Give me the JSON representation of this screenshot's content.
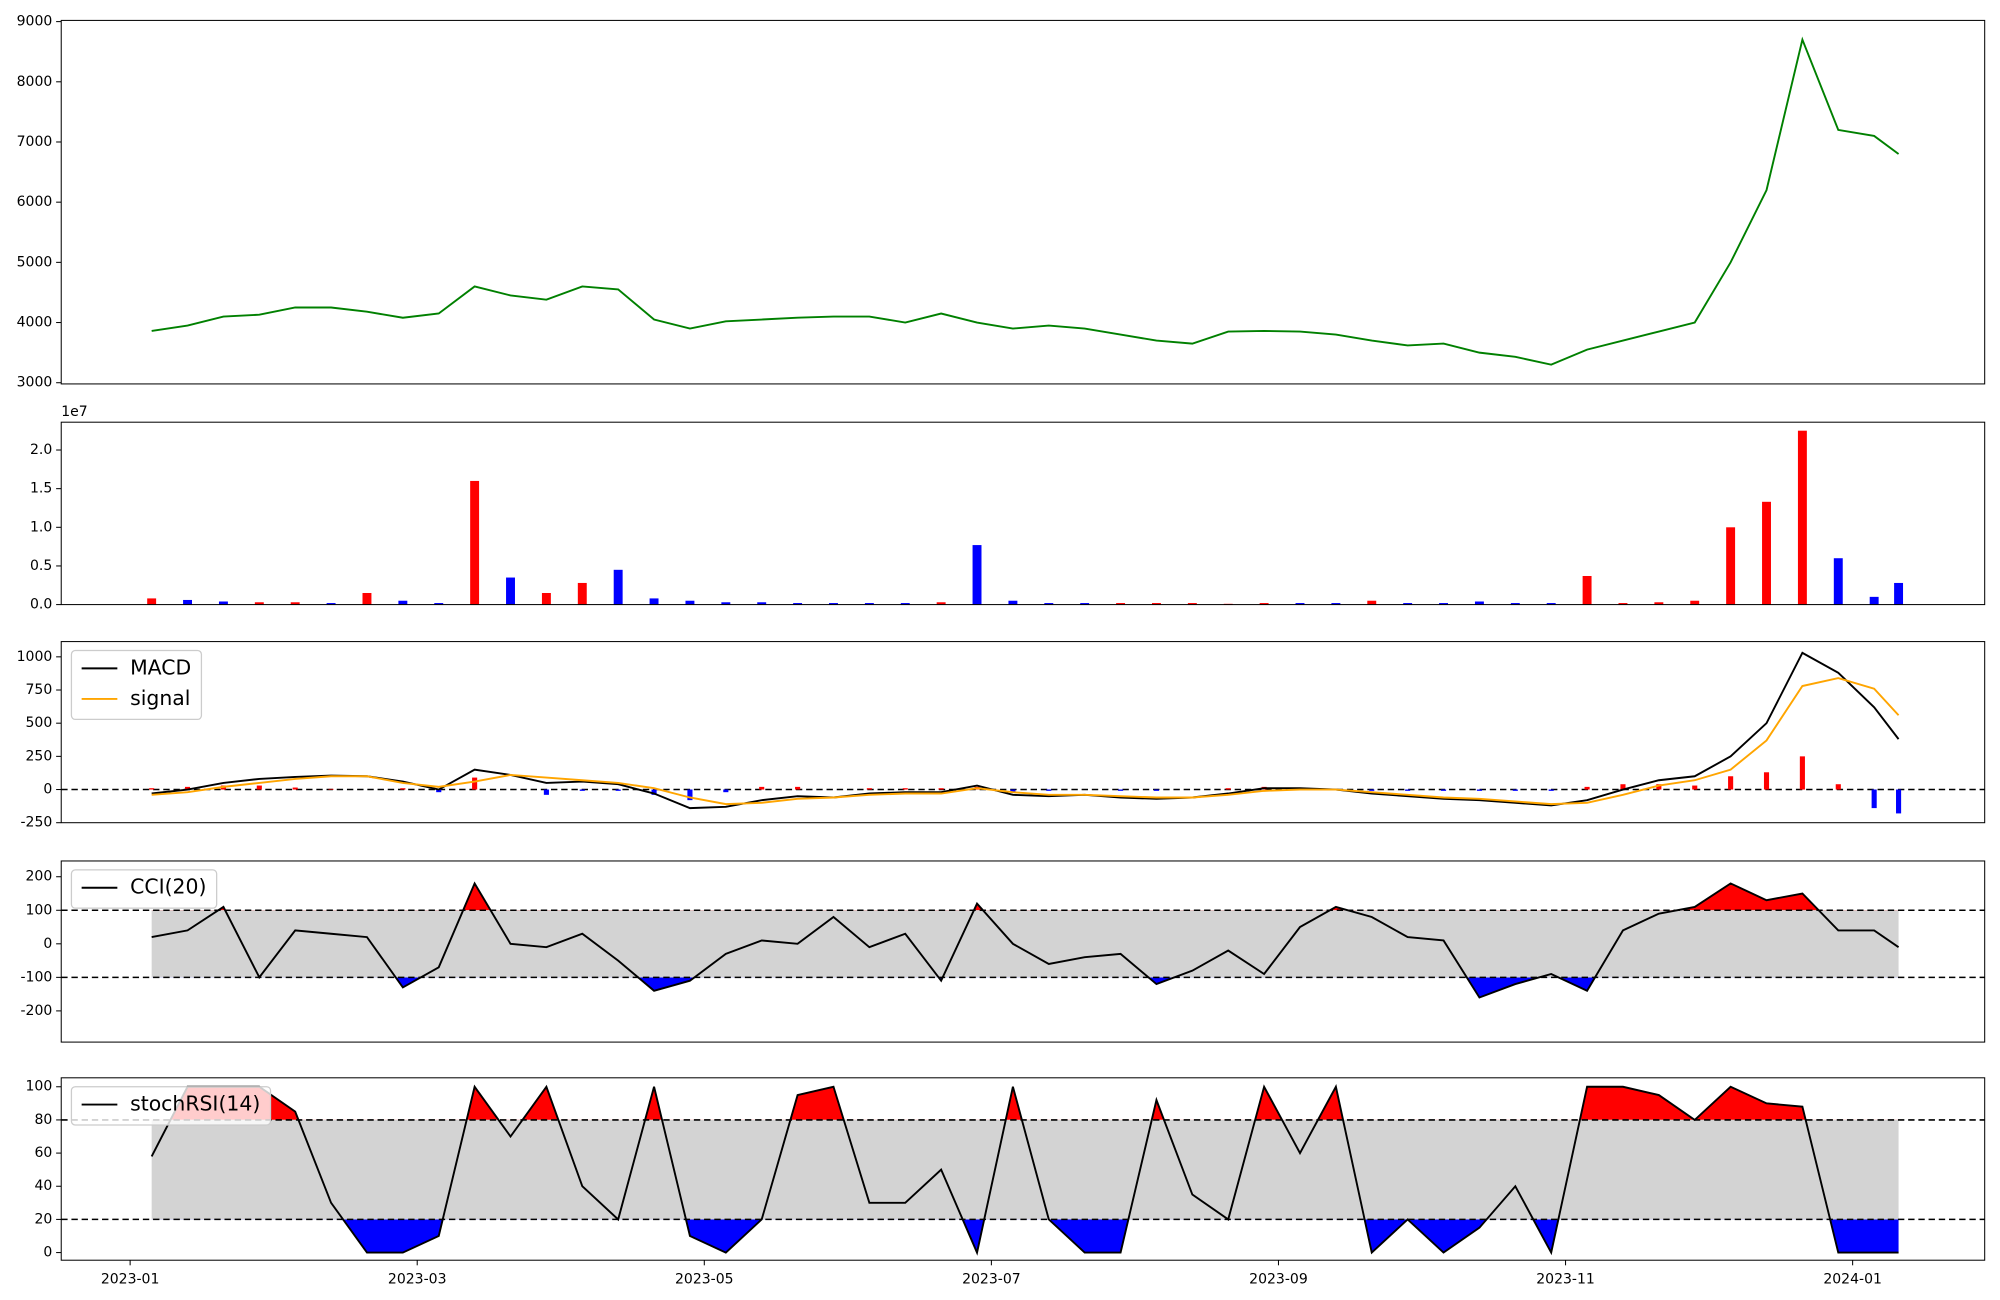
{
  "chart_data": [
    {
      "type": "line",
      "xlim": [
        -0.48,
        12.92
      ],
      "ylim": [
        2980,
        9020
      ],
      "yticks": [
        3000,
        4000,
        5000,
        6000,
        7000,
        8000,
        9000
      ],
      "x": [
        0.15,
        0.4,
        0.65,
        0.9,
        1.15,
        1.4,
        1.65,
        1.9,
        2.15,
        2.4,
        2.65,
        2.9,
        3.15,
        3.4,
        3.65,
        3.9,
        4.15,
        4.4,
        4.65,
        4.9,
        5.15,
        5.4,
        5.65,
        5.9,
        6.15,
        6.4,
        6.65,
        6.9,
        7.15,
        7.4,
        7.65,
        7.9,
        8.15,
        8.4,
        8.65,
        8.9,
        9.15,
        9.4,
        9.65,
        9.9,
        10.15,
        10.4,
        10.65,
        10.9,
        11.15,
        11.4,
        11.65,
        11.9,
        12.15,
        12.32
      ],
      "series": [
        {
          "color": "green",
          "values": [
            3860,
            3950,
            4100,
            4130,
            4250,
            4250,
            4180,
            4080,
            4150,
            4600,
            4450,
            4380,
            4600,
            4550,
            4050,
            3900,
            4020,
            4050,
            4080,
            4100,
            4100,
            4000,
            4150,
            4000,
            3900,
            3950,
            3900,
            3800,
            3700,
            3650,
            3850,
            3860,
            3850,
            3800,
            3700,
            3620,
            3650,
            3500,
            3430,
            3300,
            3550,
            3700,
            3850,
            4000,
            5000,
            6200,
            8700,
            7200,
            7100,
            6800
          ]
        }
      ]
    },
    {
      "type": "bar",
      "xlim": [
        -0.48,
        12.92
      ],
      "ylim": [
        0,
        23600000
      ],
      "yticks": [
        {
          "value": 0,
          "label": "0.0"
        },
        {
          "value": 5000000,
          "label": "0.5"
        },
        {
          "value": 10000000,
          "label": "1.0"
        },
        {
          "value": 15000000,
          "label": "1.5"
        },
        {
          "value": 20000000,
          "label": "2.0"
        }
      ],
      "y_offset_label": "1e7",
      "x": [
        0.15,
        0.4,
        0.65,
        0.9,
        1.15,
        1.4,
        1.65,
        1.9,
        2.15,
        2.4,
        2.65,
        2.9,
        3.15,
        3.4,
        3.65,
        3.9,
        4.15,
        4.4,
        4.65,
        4.9,
        5.15,
        5.4,
        5.65,
        5.9,
        6.15,
        6.4,
        6.65,
        6.9,
        7.15,
        7.4,
        7.65,
        7.9,
        8.15,
        8.4,
        8.65,
        8.9,
        9.15,
        9.4,
        9.65,
        9.9,
        10.15,
        10.4,
        10.65,
        10.9,
        11.15,
        11.4,
        11.65,
        11.9,
        12.15,
        12.32
      ],
      "values": [
        800000,
        600000,
        400000,
        300000,
        300000,
        200000,
        1500000,
        500000,
        200000,
        16000000,
        3500000,
        1500000,
        2800000,
        4500000,
        800000,
        500000,
        300000,
        300000,
        200000,
        200000,
        200000,
        200000,
        300000,
        7700000,
        500000,
        200000,
        200000,
        200000,
        200000,
        200000,
        100000,
        200000,
        200000,
        200000,
        500000,
        200000,
        200000,
        400000,
        200000,
        200000,
        3700000,
        200000,
        300000,
        500000,
        10000000,
        13300000,
        22500000,
        6000000,
        1000000,
        2800000
      ],
      "colors": [
        "red",
        "blue",
        "blue",
        "red",
        "red",
        "blue",
        "red",
        "blue",
        "blue",
        "red",
        "blue",
        "red",
        "red",
        "blue",
        "blue",
        "blue",
        "blue",
        "blue",
        "blue",
        "blue",
        "blue",
        "blue",
        "red",
        "blue",
        "blue",
        "blue",
        "blue",
        "red",
        "red",
        "red",
        "red",
        "red",
        "blue",
        "blue",
        "red",
        "blue",
        "blue",
        "blue",
        "blue",
        "blue",
        "red",
        "red",
        "red",
        "red",
        "red",
        "red",
        "red",
        "blue",
        "blue",
        "blue"
      ]
    },
    {
      "type": "line",
      "xlim": [
        -0.48,
        12.92
      ],
      "ylim": [
        -250,
        1115
      ],
      "yticks": [
        -250,
        0,
        250,
        500,
        750,
        1000
      ],
      "hline": 0,
      "legend": "upper left",
      "x": [
        0.15,
        0.4,
        0.65,
        0.9,
        1.15,
        1.4,
        1.65,
        1.9,
        2.15,
        2.4,
        2.65,
        2.9,
        3.15,
        3.4,
        3.65,
        3.9,
        4.15,
        4.4,
        4.65,
        4.9,
        5.15,
        5.4,
        5.65,
        5.9,
        6.15,
        6.4,
        6.65,
        6.9,
        7.15,
        7.4,
        7.65,
        7.9,
        8.15,
        8.4,
        8.65,
        8.9,
        9.15,
        9.4,
        9.65,
        9.9,
        10.15,
        10.4,
        10.65,
        10.9,
        11.15,
        11.4,
        11.65,
        11.9,
        12.15,
        12.32
      ],
      "series": [
        {
          "name": "MACD",
          "color": "black",
          "values": [
            -30,
            0,
            50,
            80,
            95,
            105,
            100,
            60,
            0,
            150,
            110,
            50,
            60,
            40,
            -30,
            -140,
            -130,
            -80,
            -50,
            -60,
            -30,
            -20,
            -20,
            30,
            -40,
            -50,
            -40,
            -60,
            -70,
            -60,
            -30,
            10,
            10,
            0,
            -30,
            -50,
            -70,
            -80,
            -100,
            -120,
            -80,
            0,
            70,
            100,
            250,
            500,
            1030,
            880,
            620,
            380
          ]
        },
        {
          "name": "signal",
          "color": "orange",
          "values": [
            -40,
            -20,
            20,
            50,
            80,
            100,
            100,
            50,
            20,
            60,
            110,
            90,
            70,
            50,
            10,
            -60,
            -110,
            -100,
            -70,
            -60,
            -40,
            -30,
            -30,
            10,
            -20,
            -40,
            -40,
            -50,
            -60,
            -60,
            -40,
            -10,
            0,
            0,
            -20,
            -40,
            -60,
            -70,
            -90,
            -110,
            -100,
            -40,
            30,
            70,
            150,
            370,
            780,
            840,
            760,
            560
          ]
        }
      ],
      "histogram": {
        "up_color": "red",
        "down_color": "blue",
        "values": [
          10,
          20,
          30,
          30,
          15,
          5,
          0,
          10,
          -20,
          90,
          0,
          -40,
          -10,
          -10,
          -40,
          -80,
          -20,
          20,
          20,
          0,
          10,
          10,
          10,
          20,
          -20,
          -10,
          0,
          -10,
          -10,
          0,
          10,
          20,
          10,
          0,
          -10,
          -10,
          -10,
          -10,
          -10,
          -10,
          20,
          40,
          40,
          30,
          100,
          130,
          250,
          40,
          -140,
          -180
        ]
      }
    },
    {
      "type": "line",
      "xlim": [
        -0.48,
        12.92
      ],
      "ylim": [
        -293,
        247
      ],
      "yticks": [
        -200,
        -100,
        0,
        100,
        200
      ],
      "legend": "upper left",
      "thresholds": [
        -100,
        100
      ],
      "band_color": "lightgray",
      "above_color": "red",
      "below_color": "blue",
      "x": [
        0.15,
        0.4,
        0.65,
        0.9,
        1.15,
        1.4,
        1.65,
        1.9,
        2.15,
        2.4,
        2.65,
        2.9,
        3.15,
        3.4,
        3.65,
        3.9,
        4.15,
        4.4,
        4.65,
        4.9,
        5.15,
        5.4,
        5.65,
        5.9,
        6.15,
        6.4,
        6.65,
        6.9,
        7.15,
        7.4,
        7.65,
        7.9,
        8.15,
        8.4,
        8.65,
        8.9,
        9.15,
        9.4,
        9.65,
        9.9,
        10.15,
        10.4,
        10.65,
        10.9,
        11.15,
        11.4,
        11.65,
        11.9,
        12.15,
        12.32
      ],
      "series": [
        {
          "name": "CCI(20)",
          "color": "black",
          "values": [
            20,
            40,
            110,
            -100,
            40,
            30,
            20,
            -130,
            -70,
            180,
            0,
            -10,
            30,
            -50,
            -140,
            -110,
            -30,
            10,
            0,
            80,
            -10,
            30,
            -110,
            120,
            0,
            -60,
            -40,
            -30,
            -120,
            -80,
            -20,
            -90,
            50,
            110,
            80,
            20,
            10,
            -160,
            -120,
            -90,
            -140,
            40,
            90,
            110,
            180,
            130,
            150,
            40,
            40,
            -10
          ]
        }
      ]
    },
    {
      "type": "line",
      "xlim": [
        -0.48,
        12.92
      ],
      "ylim": [
        -4.6,
        105.4
      ],
      "yticks": [
        0,
        20,
        40,
        60,
        80,
        100
      ],
      "legend": "upper left",
      "thresholds": [
        20,
        80
      ],
      "band_color": "lightgray",
      "above_color": "red",
      "below_color": "blue",
      "xticks": [
        {
          "value": 0,
          "label": "2023-01"
        },
        {
          "value": 2,
          "label": "2023-03"
        },
        {
          "value": 4,
          "label": "2023-05"
        },
        {
          "value": 6,
          "label": "2023-07"
        },
        {
          "value": 8,
          "label": "2023-09"
        },
        {
          "value": 10,
          "label": "2023-11"
        },
        {
          "value": 12,
          "label": "2024-01"
        }
      ],
      "x": [
        0.15,
        0.4,
        0.65,
        0.9,
        1.15,
        1.4,
        1.65,
        1.9,
        2.15,
        2.4,
        2.65,
        2.9,
        3.15,
        3.4,
        3.65,
        3.9,
        4.15,
        4.4,
        4.65,
        4.9,
        5.15,
        5.4,
        5.65,
        5.9,
        6.15,
        6.4,
        6.65,
        6.9,
        7.15,
        7.4,
        7.65,
        7.9,
        8.15,
        8.4,
        8.65,
        8.9,
        9.15,
        9.4,
        9.65,
        9.9,
        10.15,
        10.4,
        10.65,
        10.9,
        11.15,
        11.4,
        11.65,
        11.9,
        12.15,
        12.32
      ],
      "series": [
        {
          "name": "stochRSI(14)",
          "color": "black",
          "values": [
            58,
            100,
            100,
            100,
            85,
            30,
            0,
            0,
            10,
            100,
            70,
            100,
            40,
            20,
            100,
            10,
            0,
            20,
            95,
            100,
            30,
            30,
            50,
            0,
            100,
            20,
            0,
            0,
            92,
            35,
            20,
            100,
            60,
            100,
            0,
            20,
            0,
            15,
            40,
            0,
            100,
            100,
            95,
            80,
            100,
            90,
            88,
            0,
            0,
            0
          ]
        }
      ]
    }
  ]
}
